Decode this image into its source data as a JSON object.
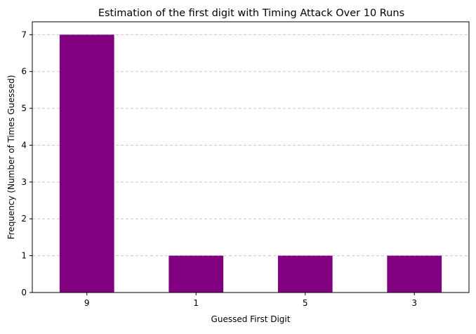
{
  "chart_data": {
    "type": "bar",
    "title": "Estimation of the first digit with Timing Attack Over 10 Runs",
    "xlabel": "Guessed First Digit",
    "ylabel": "Frequency (Number of Times Guessed)",
    "categories": [
      "9",
      "1",
      "5",
      "3"
    ],
    "values": [
      7,
      1,
      1,
      1
    ],
    "ylim": [
      0,
      7.35
    ],
    "yticks": [
      0,
      1,
      2,
      3,
      4,
      5,
      6,
      7
    ],
    "bar_color": "#800080",
    "grid": "horizontal dashed",
    "legend": "none"
  }
}
